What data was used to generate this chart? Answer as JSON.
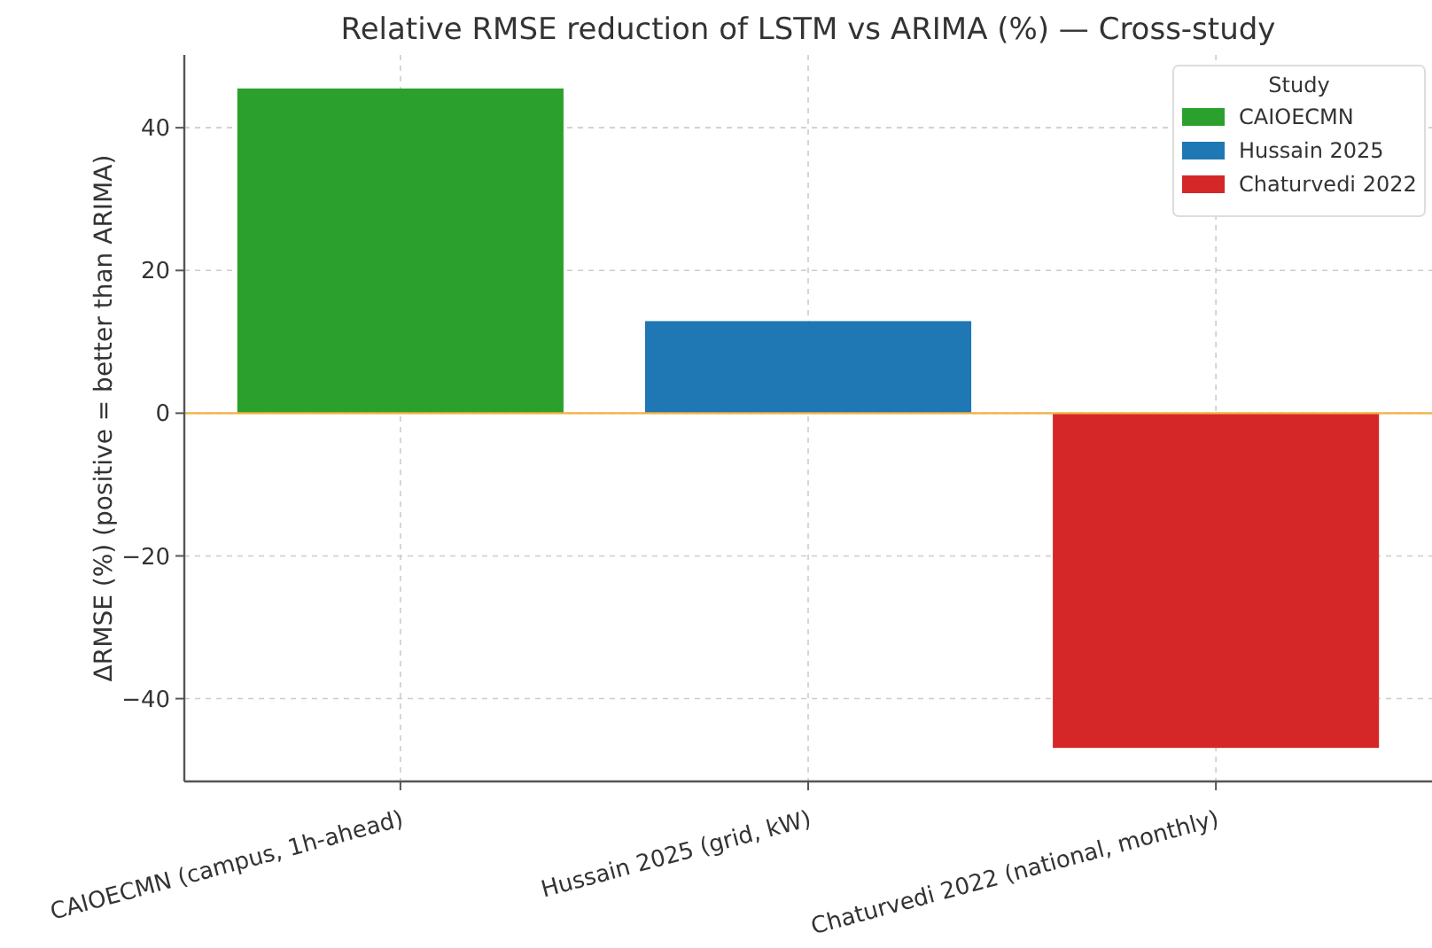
{
  "chart_data": {
    "type": "bar",
    "title": "Relative RMSE reduction of LSTM vs ARIMA (%) — Cross-study",
    "ylabel": "ΔRMSE (%) (positive = better than ARIMA)",
    "legend_title": "Study",
    "categories": [
      "CAIOECMN (campus, 1h-ahead)",
      "Hussain 2025 (grid, kW)",
      "Chaturvedi 2022 (national, monthly)"
    ],
    "series": [
      {
        "name": "CAIOECMN",
        "color": "#2ca02c",
        "values": [
          45.5,
          null,
          null
        ]
      },
      {
        "name": "Hussain 2025",
        "color": "#1f77b4",
        "values": [
          null,
          12.9,
          null
        ]
      },
      {
        "name": "Chaturvedi 2022",
        "color": "#d62728",
        "values": [
          null,
          null,
          -46.9
        ]
      }
    ],
    "ylim": [
      -51.6,
      50.2
    ],
    "yticks": [
      {
        "value": -40,
        "label": "−40"
      },
      {
        "value": -20,
        "label": "−20"
      },
      0,
      20,
      40
    ],
    "ref_lines": [
      {
        "axis": "y",
        "value": 0,
        "color": "#f5b041"
      }
    ],
    "grid": true,
    "legend": "top right"
  }
}
